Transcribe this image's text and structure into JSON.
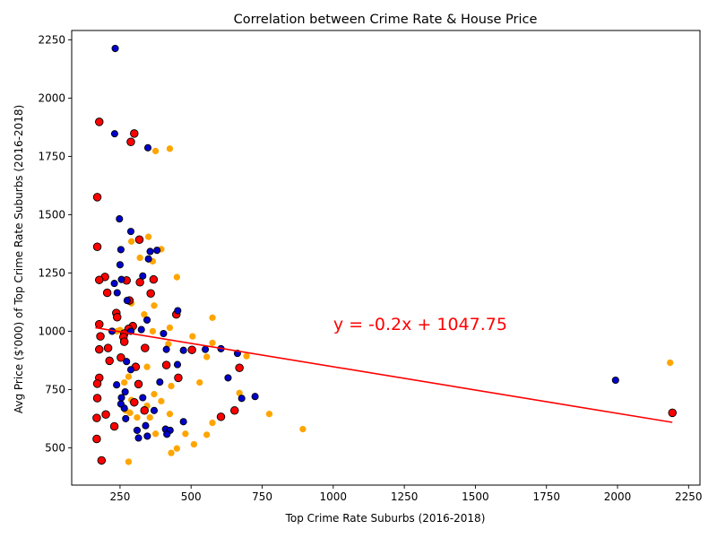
{
  "chart_data": {
    "type": "scatter",
    "title": "Correlation between Crime Rate & House Price",
    "xlabel": "Top Crime Rate Suburbs (2016-2018)",
    "ylabel": "Avg Price ($'000) of Top Crime Rate Suburbs (2016-2018)",
    "xlim": [
      80,
      2290
    ],
    "ylim": [
      340,
      2290
    ],
    "xticks": [
      250,
      500,
      750,
      1000,
      1250,
      1500,
      1750,
      2000,
      2250
    ],
    "yticks": [
      500,
      750,
      1000,
      1250,
      1500,
      1750,
      2000,
      2250
    ],
    "grid": false,
    "annotation": {
      "text": "y = -0.2x + 1047.75",
      "x": 1000,
      "y": 1005,
      "color": "#ff0000"
    },
    "regression": {
      "slope": -0.2,
      "intercept": 1047.75,
      "x_range": [
        163,
        2193
      ],
      "color": "#ff0000"
    },
    "series": [
      {
        "face": "#ffa500",
        "edge": "#ffa500",
        "size": 3.2,
        "points": [
          [
            425,
            1783
          ],
          [
            375,
            1773
          ],
          [
            290,
            1385
          ],
          [
            350,
            1405
          ],
          [
            395,
            1352
          ],
          [
            365,
            1300
          ],
          [
            320,
            1315
          ],
          [
            450,
            1232
          ],
          [
            290,
            1120
          ],
          [
            370,
            1110
          ],
          [
            335,
            1072
          ],
          [
            425,
            1015
          ],
          [
            365,
            1000
          ],
          [
            575,
            1058
          ],
          [
            505,
            978
          ],
          [
            575,
            950
          ],
          [
            695,
            893
          ],
          [
            555,
            890
          ],
          [
            420,
            945
          ],
          [
            345,
            847
          ],
          [
            280,
            805
          ],
          [
            265,
            780
          ],
          [
            530,
            780
          ],
          [
            430,
            765
          ],
          [
            370,
            730
          ],
          [
            670,
            735
          ],
          [
            395,
            700
          ],
          [
            290,
            705
          ],
          [
            285,
            650
          ],
          [
            310,
            630
          ],
          [
            425,
            645
          ],
          [
            355,
            630
          ],
          [
            775,
            645
          ],
          [
            575,
            607
          ],
          [
            480,
            560
          ],
          [
            375,
            560
          ],
          [
            555,
            556
          ],
          [
            413,
            560
          ],
          [
            510,
            515
          ],
          [
            450,
            497
          ],
          [
            893,
            580
          ],
          [
            430,
            478
          ],
          [
            280,
            440
          ],
          [
            2185,
            865
          ],
          [
            270,
            660
          ],
          [
            240,
            1000
          ],
          [
            250,
            1005
          ],
          [
            345,
            680
          ],
          [
            290,
            1000
          ]
        ]
      },
      {
        "face": "#ff0000",
        "edge": "#000000",
        "size": 4.3,
        "points": [
          [
            177,
            1898
          ],
          [
            300,
            1848
          ],
          [
            288,
            1812
          ],
          [
            170,
            1575
          ],
          [
            170,
            1362
          ],
          [
            318,
            1393
          ],
          [
            197,
            1233
          ],
          [
            177,
            1220
          ],
          [
            273,
            1218
          ],
          [
            368,
            1222
          ],
          [
            205,
            1165
          ],
          [
            358,
            1162
          ],
          [
            320,
            1210
          ],
          [
            283,
            1132
          ],
          [
            237,
            1078
          ],
          [
            240,
            1060
          ],
          [
            295,
            1022
          ],
          [
            280,
            1010
          ],
          [
            265,
            990
          ],
          [
            262,
            975
          ],
          [
            181,
            978
          ],
          [
            177,
            1030
          ],
          [
            265,
            955
          ],
          [
            448,
            1072
          ],
          [
            208,
            928
          ],
          [
            177,
            922
          ],
          [
            338,
            928
          ],
          [
            503,
            920
          ],
          [
            253,
            887
          ],
          [
            213,
            873
          ],
          [
            305,
            847
          ],
          [
            413,
            855
          ],
          [
            670,
            843
          ],
          [
            455,
            800
          ],
          [
            177,
            800
          ],
          [
            170,
            775
          ],
          [
            315,
            773
          ],
          [
            170,
            713
          ],
          [
            300,
            695
          ],
          [
            336,
            660
          ],
          [
            653,
            660
          ],
          [
            200,
            643
          ],
          [
            605,
            633
          ],
          [
            168,
            628
          ],
          [
            230,
            592
          ],
          [
            168,
            538
          ],
          [
            185,
            446
          ],
          [
            2193,
            650
          ]
        ]
      },
      {
        "face": "#0000cd",
        "edge": "#000000",
        "size": 3.6,
        "points": [
          [
            233,
            2213
          ],
          [
            231,
            1847
          ],
          [
            348,
            1787
          ],
          [
            248,
            1482
          ],
          [
            288,
            1428
          ],
          [
            253,
            1350
          ],
          [
            356,
            1342
          ],
          [
            380,
            1347
          ],
          [
            350,
            1310
          ],
          [
            250,
            1285
          ],
          [
            330,
            1237
          ],
          [
            255,
            1222
          ],
          [
            230,
            1205
          ],
          [
            240,
            1165
          ],
          [
            275,
            1132
          ],
          [
            345,
            1048
          ],
          [
            325,
            1007
          ],
          [
            222,
            1000
          ],
          [
            288,
            1000
          ],
          [
            403,
            990
          ],
          [
            453,
            1088
          ],
          [
            413,
            922
          ],
          [
            473,
            918
          ],
          [
            550,
            922
          ],
          [
            663,
            905
          ],
          [
            605,
            925
          ],
          [
            273,
            870
          ],
          [
            452,
            857
          ],
          [
            288,
            835
          ],
          [
            630,
            800
          ],
          [
            390,
            782
          ],
          [
            238,
            770
          ],
          [
            268,
            740
          ],
          [
            255,
            715
          ],
          [
            330,
            715
          ],
          [
            678,
            712
          ],
          [
            725,
            720
          ],
          [
            265,
            670
          ],
          [
            253,
            688
          ],
          [
            370,
            660
          ],
          [
            473,
            612
          ],
          [
            270,
            625
          ],
          [
            340,
            595
          ],
          [
            410,
            580
          ],
          [
            426,
            575
          ],
          [
            310,
            575
          ],
          [
            415,
            558
          ],
          [
            315,
            542
          ],
          [
            346,
            550
          ],
          [
            1993,
            790
          ]
        ]
      }
    ]
  }
}
